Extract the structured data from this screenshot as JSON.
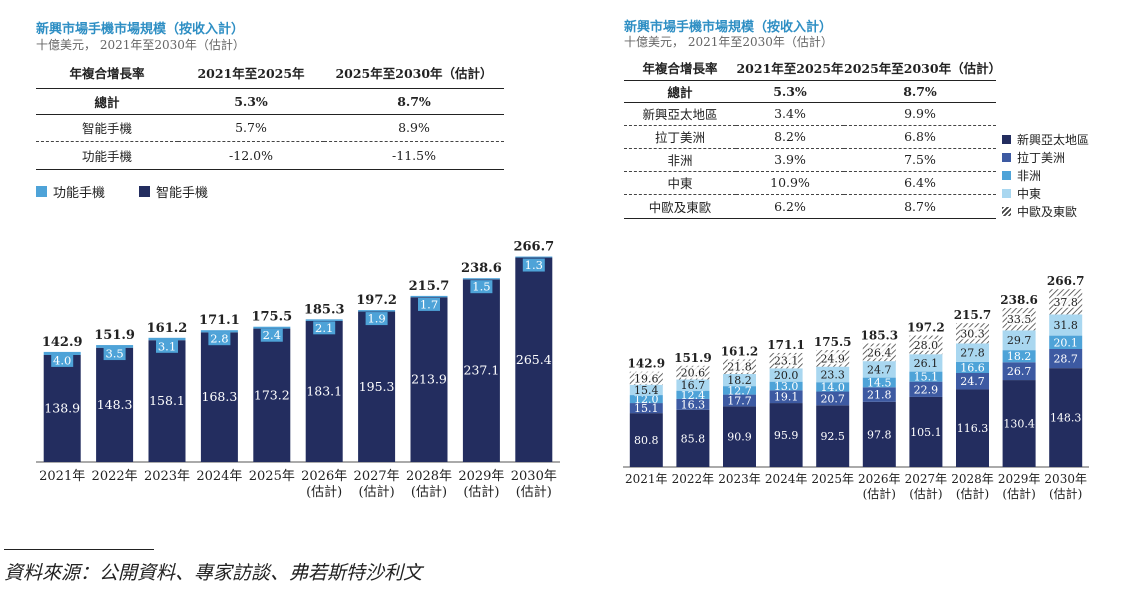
{
  "source": "資料來源：公開資料、專家訪談、弗若斯特沙利文",
  "colors": {
    "navy": "#232d5f",
    "blue": "#3d5aa2",
    "sky": "#4ea3d8",
    "light": "#a9d7f0",
    "hatch": "#444444"
  },
  "left": {
    "title": "新興市場手機市場規模（按收入計）",
    "subtitle": "十億美元，  2021年至2030年（估計）",
    "table": {
      "headers": [
        "年複合增長率",
        "2021年至2025年",
        "2025年至2030年（估計）"
      ],
      "rows": [
        [
          "總計",
          "5.3%",
          "8.7%"
        ],
        [
          "智能手機",
          "5.7%",
          "8.9%"
        ],
        [
          "功能手機",
          "-12.0%",
          "-11.5%"
        ]
      ]
    },
    "legend": [
      "功能手機",
      "智能手機"
    ],
    "chart_data": {
      "type": "bar",
      "stacked": true,
      "categories": [
        "2021年",
        "2022年",
        "2023年",
        "2024年",
        "2025年",
        "2026年\n(估計)",
        "2027年\n(估計)",
        "2028年\n(估計)",
        "2029年\n(估計)",
        "2030年\n(估計)"
      ],
      "series": [
        {
          "name": "智能手機",
          "color": "#232d5f",
          "values": [
            138.9,
            148.3,
            158.1,
            168.3,
            173.2,
            183.1,
            195.3,
            213.9,
            237.1,
            265.4
          ]
        },
        {
          "name": "功能手機",
          "color": "#4ea3d8",
          "values": [
            4.0,
            3.5,
            3.1,
            2.8,
            2.4,
            2.1,
            1.9,
            1.7,
            1.5,
            1.3
          ]
        }
      ],
      "totals": [
        "142.9",
        "151.9",
        "161.2",
        "171.1",
        "175.5",
        "185.3",
        "197.2",
        "215.7",
        "238.6",
        "266.7"
      ],
      "ylim": [
        0,
        270
      ]
    }
  },
  "right": {
    "title": "新興市場手機市場規模（按收入計）",
    "subtitle": "十億美元，  2021年至2030年（估計）",
    "table": {
      "headers": [
        "年複合增長率",
        "2021年至2025年",
        "2025年至2030年（估計）"
      ],
      "rows": [
        [
          "總計",
          "5.3%",
          "8.7%"
        ],
        [
          "新興亞太地區",
          "3.4%",
          "9.9%"
        ],
        [
          "拉丁美洲",
          "8.2%",
          "6.8%"
        ],
        [
          "非洲",
          "3.9%",
          "7.5%"
        ],
        [
          "中東",
          "10.9%",
          "6.4%"
        ],
        [
          "中歐及東歐",
          "6.2%",
          "8.7%"
        ]
      ]
    },
    "legend": [
      "新興亞太地區",
      "拉丁美洲",
      "非洲",
      "中東",
      "中歐及東歐"
    ],
    "chart_data": {
      "type": "bar",
      "stacked": true,
      "categories": [
        "2021年",
        "2022年",
        "2023年",
        "2024年",
        "2025年",
        "2026年\n(估計)",
        "2027年\n(估計)",
        "2028年\n(估計)",
        "2029年\n(估計)",
        "2030年\n(估計)"
      ],
      "series": [
        {
          "name": "新興亞太地區",
          "color": "#232d5f",
          "values": [
            80.8,
            85.8,
            90.9,
            95.9,
            92.5,
            97.8,
            105.1,
            116.3,
            130.4,
            148.3
          ]
        },
        {
          "name": "拉丁美洲",
          "color": "#3d5aa2",
          "values": [
            15.1,
            16.3,
            17.7,
            19.1,
            20.7,
            21.8,
            22.9,
            24.7,
            26.7,
            28.7
          ]
        },
        {
          "name": "非洲",
          "color": "#4ea3d8",
          "values": [
            12.0,
            12.4,
            12.7,
            13.0,
            14.0,
            14.5,
            15.1,
            16.6,
            18.2,
            20.1
          ]
        },
        {
          "name": "中東",
          "color": "#a9d7f0",
          "values": [
            15.4,
            16.7,
            18.2,
            20.0,
            23.3,
            24.7,
            26.1,
            27.8,
            29.7,
            31.8
          ]
        },
        {
          "name": "中歐及東歐",
          "color": "hatch",
          "values": [
            19.6,
            20.6,
            21.8,
            23.1,
            24.9,
            26.4,
            28.0,
            30.3,
            33.5,
            37.8
          ]
        }
      ],
      "totals": [
        "142.9",
        "151.9",
        "161.2",
        "171.1",
        "175.5",
        "185.3",
        "197.2",
        "215.7",
        "238.6",
        "266.7"
      ],
      "ylim": [
        0,
        270
      ]
    }
  }
}
